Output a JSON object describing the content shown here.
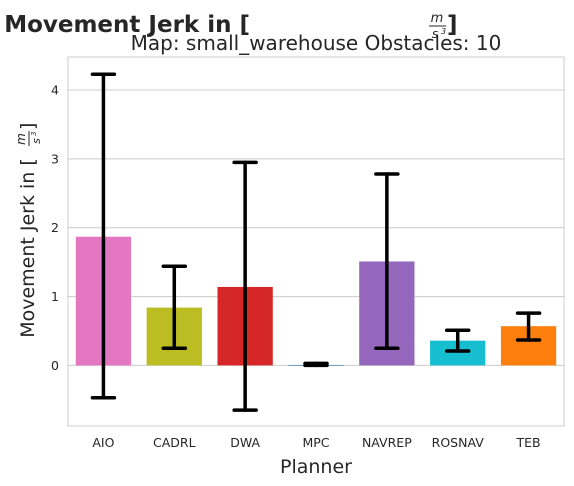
{
  "chart_data": {
    "type": "bar",
    "title": {
      "prefix": "Movement Jerk in [",
      "numerator": "m",
      "denominator": "s",
      "exponent": "3",
      "suffix": "]"
    },
    "subtitle": "Map: small_warehouse Obstacles: 10",
    "xlabel": "Planner",
    "ylabel": {
      "prefix": "Movement Jerk in [",
      "numerator": "m",
      "denominator": "s",
      "exponent": "3",
      "suffix": "]"
    },
    "categories": [
      "AIO",
      "CADRL",
      "DWA",
      "MPC",
      "NAVREP",
      "ROSNAV",
      "TEB"
    ],
    "values": [
      1.87,
      0.84,
      1.14,
      0.0,
      1.51,
      0.36,
      0.57
    ],
    "error_low": [
      -0.47,
      0.25,
      -0.65,
      0.0,
      0.25,
      0.21,
      0.37
    ],
    "error_high": [
      4.23,
      1.44,
      2.95,
      0.03,
      2.78,
      0.51,
      0.76
    ],
    "colors": [
      "#e377c2",
      "#bcbd22",
      "#d62728",
      "#1f77b4",
      "#9467bd",
      "#17becf",
      "#ff7f0e"
    ],
    "yticks": [
      "0",
      "1",
      "2",
      "3",
      "4"
    ],
    "ylim": [
      -0.88,
      4.48
    ],
    "grid": true
  }
}
